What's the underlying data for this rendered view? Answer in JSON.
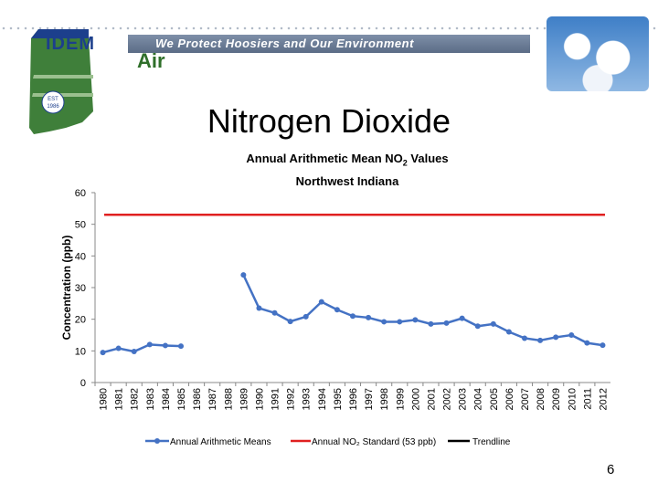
{
  "header": {
    "logo_text": "IDEM",
    "tagline": "We Protect Hoosiers and Our Environment",
    "section": "Air",
    "est_label": "EST",
    "est_year": "1986"
  },
  "slide": {
    "title": "Nitrogen Dioxide",
    "page_number": "6"
  },
  "chart_data": {
    "type": "line",
    "title": "Annual Arithmetic Mean NO",
    "title_subscript": "2",
    "title_suffix": " Values",
    "subtitle": "Northwest Indiana",
    "ylabel": "Concentration (ppb)",
    "xlabel": "",
    "ylim": [
      0,
      60
    ],
    "yticks": [
      0,
      10,
      20,
      30,
      40,
      50,
      60
    ],
    "categories": [
      "1980",
      "1981",
      "1982",
      "1983",
      "1984",
      "1985",
      "1986",
      "1987",
      "1988",
      "1989",
      "1990",
      "1991",
      "1992",
      "1993",
      "1994",
      "1995",
      "1996",
      "1997",
      "1998",
      "1999",
      "2000",
      "2001",
      "2002",
      "2003",
      "2004",
      "2005",
      "2006",
      "2007",
      "2008",
      "2009",
      "2010",
      "2011",
      "2012"
    ],
    "series": [
      {
        "name": "Annual Arithmetic Means",
        "color": "#4472c4",
        "values": [
          9.5,
          10.8,
          9.8,
          12,
          11.7,
          11.5,
          null,
          null,
          null,
          34,
          23.5,
          22,
          19.3,
          20.8,
          25.5,
          23,
          21,
          20.5,
          19.2,
          19.2,
          19.8,
          18.5,
          18.8,
          20.3,
          17.8,
          18.5,
          16,
          14,
          13.3,
          14.3,
          15,
          12.5,
          11.8
        ]
      },
      {
        "name": "Annual NO₂ Standard (53 ppb)",
        "color": "#e02020",
        "constant": 53
      }
    ],
    "legend": {
      "position": "bottom",
      "trendline_label": "Trendline",
      "trendline_color": "#000000"
    },
    "grid": false
  }
}
